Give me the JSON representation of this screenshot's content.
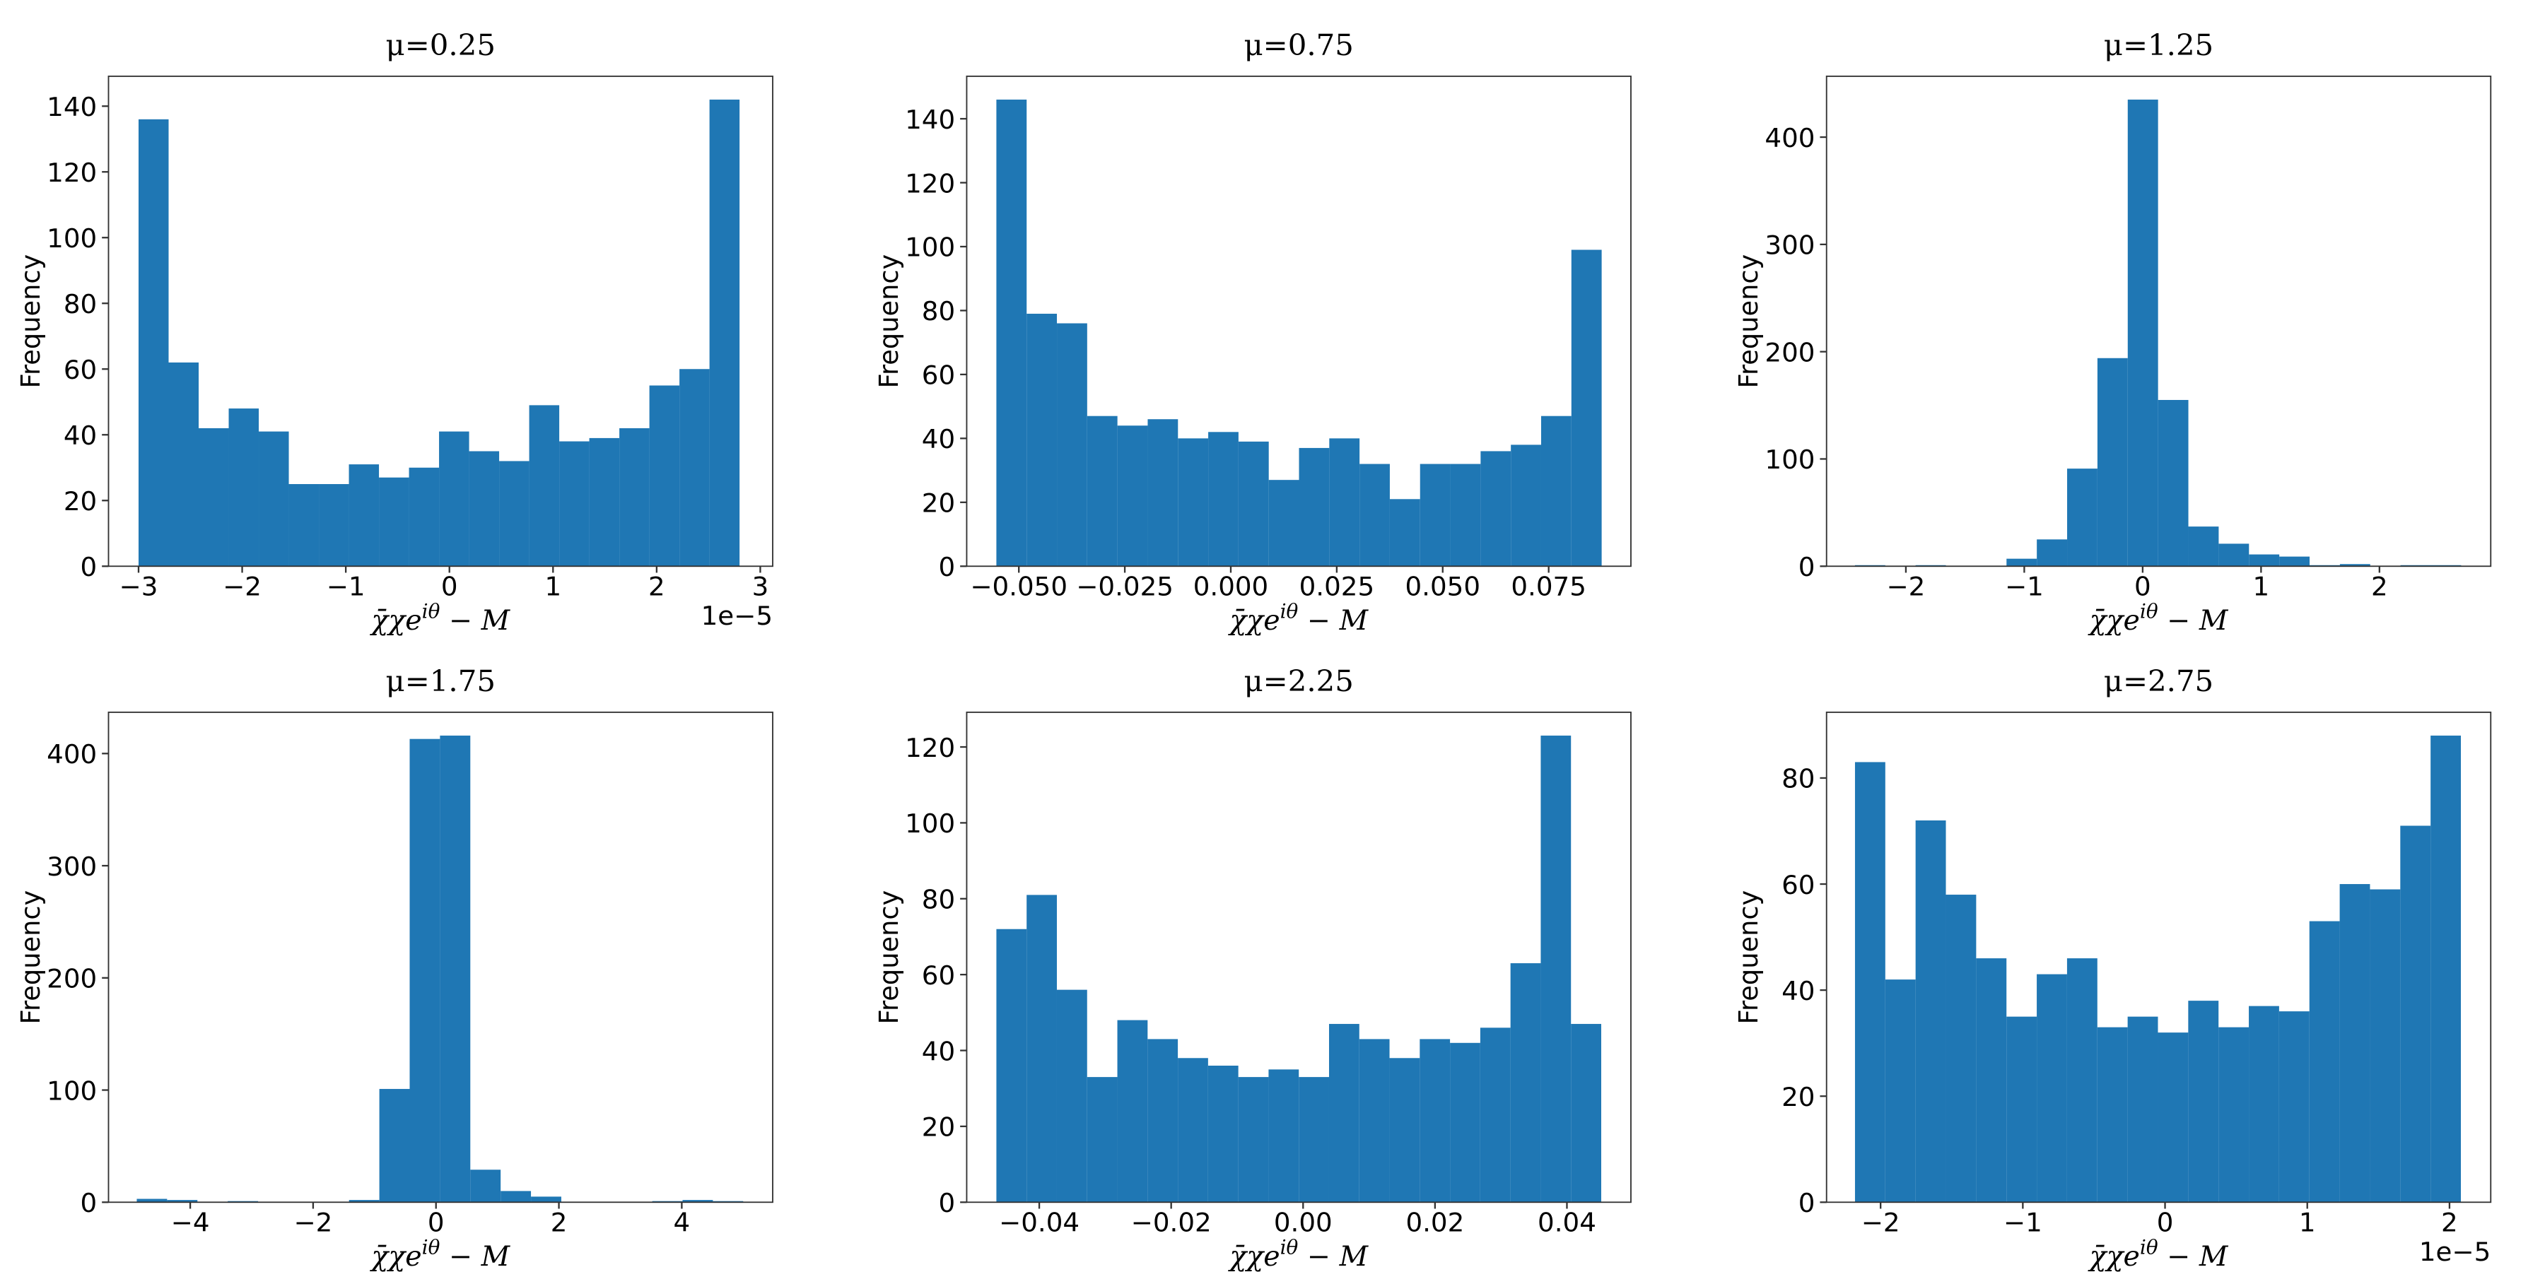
{
  "chart_data": [
    {
      "type": "histogram",
      "title": "μ=0.25",
      "ylabel": "Frequency",
      "xlabel": {
        "base": "χ̄χe",
        "sup": "iθ",
        "rest": " − M"
      },
      "offset_text": "1e−5",
      "color": "#1f77b4",
      "bins": [
        -3.0,
        -2.71,
        -2.42,
        -2.13,
        -1.84,
        -1.55,
        -1.26,
        -0.97,
        -0.68,
        -0.39,
        -0.1,
        0.19,
        0.48,
        0.77,
        1.06,
        1.35,
        1.64,
        1.93,
        2.22,
        2.51,
        2.8
      ],
      "values": [
        136,
        62,
        42,
        48,
        41,
        25,
        25,
        31,
        27,
        30,
        41,
        35,
        32,
        49,
        38,
        39,
        42,
        55,
        60,
        142
      ],
      "xlim": [
        -3.29,
        3.12
      ],
      "ylim": [
        0,
        149.1
      ],
      "xticks": [
        {
          "value": -3,
          "label": "−3"
        },
        {
          "value": -2,
          "label": "−2"
        },
        {
          "value": -1,
          "label": "−1"
        },
        0,
        1,
        2,
        3
      ],
      "yticks": [
        0,
        20,
        40,
        60,
        80,
        100,
        120,
        140
      ]
    },
    {
      "type": "histogram",
      "title": "μ=0.75",
      "ylabel": "Frequency",
      "xlabel": {
        "base": "χ̄χe",
        "sup": "iθ",
        "rest": " − M"
      },
      "color": "#1f77b4",
      "bins": [
        -0.0553,
        -0.04816,
        -0.04102,
        -0.03388,
        -0.02674,
        -0.0196,
        -0.01246,
        -0.00532,
        0.00182,
        0.00896,
        0.0161,
        0.02324,
        0.03038,
        0.03752,
        0.04466,
        0.0518,
        0.05894,
        0.06608,
        0.07322,
        0.08036,
        0.0875
      ],
      "values": [
        146,
        79,
        76,
        47,
        44,
        46,
        40,
        42,
        39,
        27,
        37,
        40,
        32,
        21,
        32,
        32,
        36,
        38,
        47,
        99
      ],
      "xlim": [
        -0.0623,
        0.0944
      ],
      "ylim": [
        0,
        153.3
      ],
      "xticks": [
        {
          "value": -0.05,
          "label": "−0.050"
        },
        {
          "value": -0.025,
          "label": "−0.025"
        },
        {
          "value": 0,
          "label": "0.000"
        },
        {
          "value": 0.025,
          "label": "0.025"
        },
        {
          "value": 0.05,
          "label": "0.050"
        },
        {
          "value": 0.075,
          "label": "0.075"
        }
      ],
      "yticks": [
        0,
        20,
        40,
        60,
        80,
        100,
        120,
        140
      ]
    },
    {
      "type": "histogram",
      "title": "μ=1.25",
      "ylabel": "Frequency",
      "xlabel": {
        "base": "χ̄χe",
        "sup": "iθ",
        "rest": " − M"
      },
      "color": "#1f77b4",
      "bins": [
        -2.43,
        -2.174,
        -1.918,
        -1.662,
        -1.406,
        -1.15,
        -0.894,
        -0.638,
        -0.382,
        -0.126,
        0.13,
        0.386,
        0.642,
        0.898,
        1.154,
        1.41,
        1.666,
        1.922,
        2.178,
        2.434,
        2.69
      ],
      "values": [
        1,
        0,
        1,
        0,
        0,
        7,
        25,
        91,
        194,
        435,
        155,
        37,
        21,
        11,
        9,
        1,
        2,
        0,
        1,
        1
      ],
      "xlim": [
        -2.67,
        2.94
      ],
      "ylim": [
        0,
        456.75
      ],
      "xticks": [
        {
          "value": -2,
          "label": "−2"
        },
        {
          "value": -1,
          "label": "−1"
        },
        0,
        1,
        2
      ],
      "yticks": [
        0,
        100,
        200,
        300,
        400
      ]
    },
    {
      "type": "histogram",
      "title": "μ=1.75",
      "ylabel": "Frequency",
      "xlabel": {
        "base": "χ̄χe",
        "sup": "iθ",
        "rest": " − M"
      },
      "color": "#1f77b4",
      "bins": [
        -4.87,
        -4.3765,
        -3.883,
        -3.3895,
        -2.896,
        -2.4025,
        -1.909,
        -1.4155,
        -0.922,
        -0.4285,
        0.065,
        0.5585,
        1.052,
        1.5455,
        2.039,
        2.5325,
        3.026,
        3.5195,
        4.013,
        4.5065,
        5.0
      ],
      "values": [
        3,
        2,
        0,
        1,
        0,
        0,
        0,
        2,
        101,
        413,
        416,
        29,
        10,
        5,
        0,
        0,
        0,
        1,
        2,
        1
      ],
      "xlim": [
        -5.33,
        5.48
      ],
      "ylim": [
        0,
        436.8
      ],
      "xticks": [
        {
          "value": -4,
          "label": "−4"
        },
        {
          "value": -2,
          "label": "−2"
        },
        0,
        2,
        4
      ],
      "yticks": [
        0,
        100,
        200,
        300,
        400
      ]
    },
    {
      "type": "histogram",
      "title": "μ=2.25",
      "ylabel": "Frequency",
      "xlabel": {
        "base": "χ̄χe",
        "sup": "iθ",
        "rest": " − M"
      },
      "color": "#1f77b4",
      "bins": [
        -0.0465,
        -0.041915,
        -0.03733,
        -0.032745,
        -0.02816,
        -0.023575,
        -0.01899,
        -0.014405,
        -0.00982,
        -0.005235,
        -0.00065,
        0.003935,
        0.00852,
        0.013105,
        0.01769,
        0.022275,
        0.02686,
        0.031445,
        0.03603,
        0.040615,
        0.0452
      ],
      "values": [
        72,
        81,
        56,
        33,
        48,
        43,
        38,
        36,
        33,
        35,
        33,
        47,
        43,
        38,
        43,
        42,
        46,
        63,
        123,
        47
      ],
      "xlim": [
        -0.051,
        0.0497
      ],
      "ylim": [
        0,
        129.15
      ],
      "xticks": [
        {
          "value": -0.04,
          "label": "−0.04"
        },
        {
          "value": -0.02,
          "label": "−0.02"
        },
        {
          "value": 0,
          "label": "0.00"
        },
        {
          "value": 0.02,
          "label": "0.02"
        },
        {
          "value": 0.04,
          "label": "0.04"
        }
      ],
      "yticks": [
        0,
        20,
        40,
        60,
        80,
        100,
        120
      ]
    },
    {
      "type": "histogram",
      "title": "μ=2.75",
      "ylabel": "Frequency",
      "xlabel": {
        "base": "χ̄χe",
        "sup": "iθ",
        "rest": " − M"
      },
      "offset_text": "1e−5",
      "color": "#1f77b4",
      "bins": [
        -2.18,
        -1.967,
        -1.754,
        -1.541,
        -1.328,
        -1.115,
        -0.902,
        -0.689,
        -0.476,
        -0.263,
        -0.05,
        0.163,
        0.376,
        0.589,
        0.802,
        1.015,
        1.228,
        1.441,
        1.654,
        1.867,
        2.08
      ],
      "values": [
        83,
        42,
        72,
        58,
        46,
        35,
        43,
        46,
        33,
        35,
        32,
        38,
        33,
        37,
        36,
        53,
        60,
        59,
        71,
        88
      ],
      "xlim": [
        -2.38,
        2.29
      ],
      "ylim": [
        0,
        92.4
      ],
      "xticks": [
        {
          "value": -2,
          "label": "−2"
        },
        {
          "value": -1,
          "label": "−1"
        },
        0,
        1,
        2
      ],
      "yticks": [
        0,
        20,
        40,
        60,
        80
      ]
    }
  ]
}
